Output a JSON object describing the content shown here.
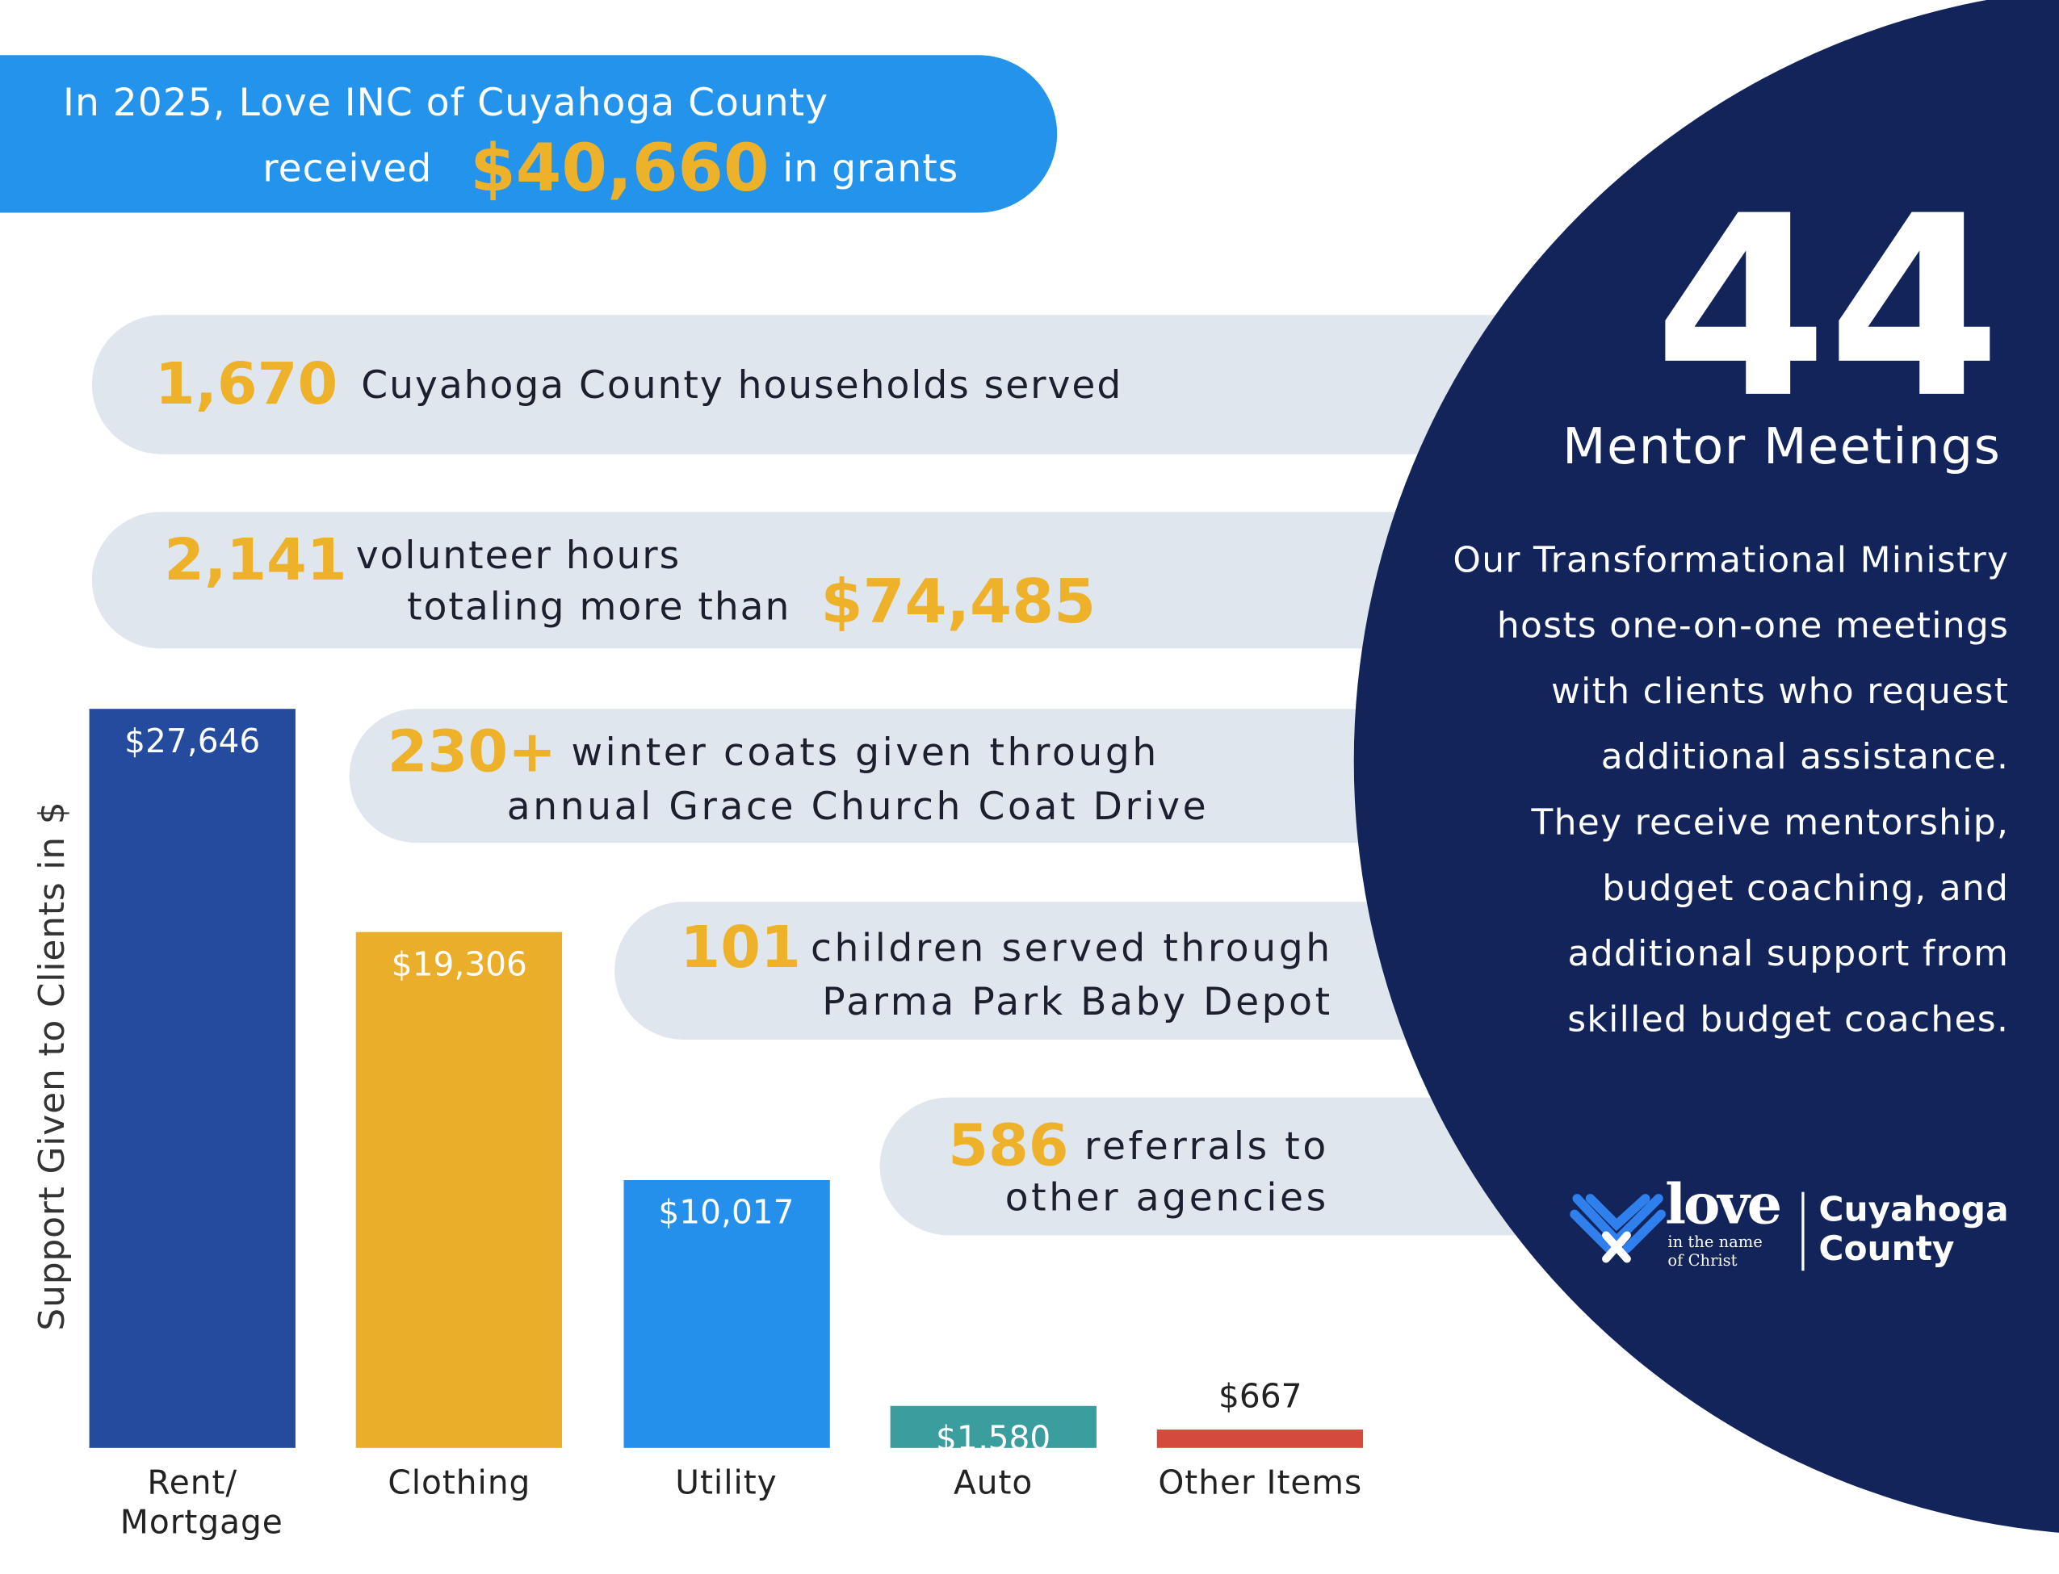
{
  "banner": {
    "line1": "In 2025, Love INC of Cuyahoga County",
    "before": "received",
    "amount": "$40,660",
    "after": "in grants"
  },
  "stats": [
    {
      "number": "1,670",
      "lines": [
        "Cuyahoga County households served"
      ]
    },
    {
      "number": "2,141",
      "lines": [
        "volunteer hours",
        "totaling more than"
      ],
      "highlight": "$74,485"
    },
    {
      "number": "230+",
      "lines": [
        "winter coats given through",
        "annual Grace Church Coat Drive"
      ]
    },
    {
      "number": "101",
      "lines": [
        "children served through",
        "Parma Park Baby Depot"
      ]
    },
    {
      "number": "586",
      "lines": [
        "referrals to",
        "other agencies"
      ]
    }
  ],
  "mentor": {
    "number": "44",
    "title": "Mentor Meetings",
    "lines": [
      "Our Transformational Ministry",
      "hosts one-on-one meetings",
      "with clients who request",
      "additional assistance.",
      "They receive mentorship,",
      "budget coaching, and",
      "additional support from",
      "skilled budget coaches."
    ]
  },
  "logo": {
    "love": "love",
    "tagline": [
      "in the name",
      "of Christ"
    ],
    "region": [
      "Cuyahoga",
      "County"
    ]
  },
  "chart_data": {
    "type": "bar",
    "y_label": "Support Given to Clients in $",
    "categories": [
      "Rent/ Mortgage",
      "Clothing",
      "Utility",
      "Auto",
      "Other Items"
    ],
    "values": [
      27646,
      19306,
      10017,
      1580,
      667
    ],
    "value_labels": [
      "$27,646",
      "$19,306",
      "$10,017",
      "$1,580",
      "$667"
    ],
    "colors": [
      "#244b9e",
      "#ebae2a",
      "#2490ec",
      "#3a9e9e",
      "#d44a3c"
    ]
  }
}
